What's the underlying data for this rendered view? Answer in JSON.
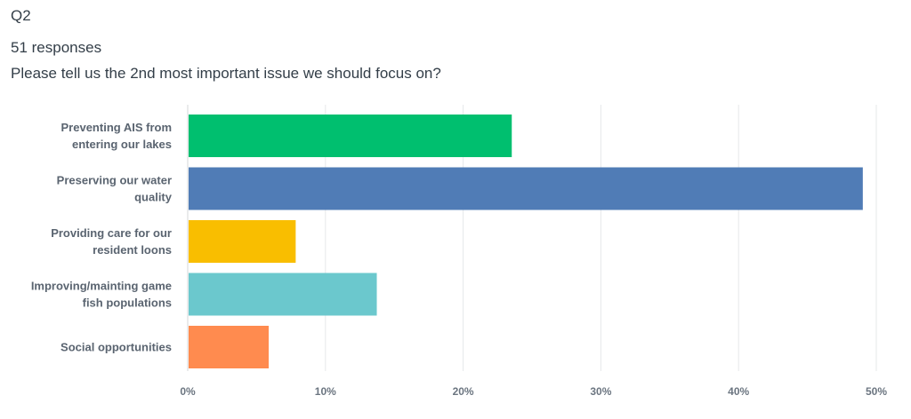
{
  "question": {
    "id": "Q2",
    "responses": "51 responses",
    "text": "Please tell us the 2nd most important issue we should focus on?"
  },
  "chart_data": {
    "type": "bar",
    "orientation": "horizontal",
    "categories": [
      [
        "Preventing AIS from",
        "entering our lakes"
      ],
      [
        "Preserving our water",
        "quality"
      ],
      [
        "Providing care for our",
        "resident loons"
      ],
      [
        "Improving/mainting game",
        "fish populations"
      ],
      [
        "Social opportunities"
      ]
    ],
    "values": [
      23.53,
      49.02,
      7.84,
      13.73,
      5.88
    ],
    "colors": [
      "#00bf6f",
      "#507cb6",
      "#f9be00",
      "#6bc8cd",
      "#ff8b4f"
    ],
    "xlim": [
      0,
      50
    ],
    "xticks": [
      0,
      10,
      20,
      30,
      40,
      50
    ],
    "xtick_labels": [
      "0%",
      "10%",
      "20%",
      "30%",
      "40%",
      "50%"
    ],
    "grid": "vertical"
  }
}
